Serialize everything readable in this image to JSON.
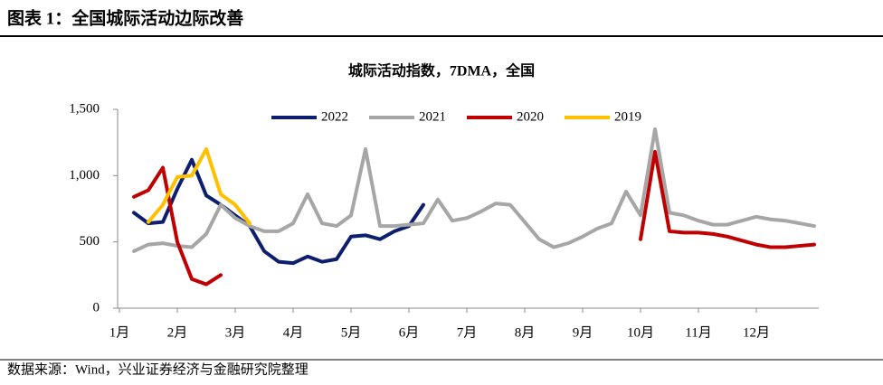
{
  "header": {
    "title": "图表 1：全国城际活动边际改善"
  },
  "chart_data": {
    "type": "line",
    "title": "城际活动指数，7DMA，全国",
    "categories": [
      "1月",
      null,
      null,
      null,
      "2月",
      null,
      null,
      null,
      "3月",
      null,
      null,
      null,
      "4月",
      null,
      null,
      null,
      "5月",
      null,
      null,
      null,
      "6月",
      null,
      null,
      null,
      "7月",
      null,
      null,
      null,
      "8月",
      null,
      null,
      null,
      "9月",
      null,
      null,
      null,
      "10月",
      null,
      null,
      null,
      "11月",
      null,
      null,
      null,
      "12月",
      null,
      null,
      null,
      null
    ],
    "series": [
      {
        "name": "2022",
        "color": "#0c1f6e",
        "values": [
          null,
          720,
          640,
          650,
          900,
          1120,
          850,
          780,
          700,
          620,
          430,
          350,
          340,
          390,
          350,
          370,
          540,
          550,
          520,
          580,
          620,
          780,
          null,
          null,
          null,
          null,
          null,
          null,
          null,
          null,
          null,
          null,
          null,
          null,
          null,
          null,
          null,
          null,
          null,
          null,
          null,
          null,
          null,
          null,
          null,
          null,
          null,
          null,
          null
        ]
      },
      {
        "name": "2021",
        "color": "#a6a6a6",
        "values": [
          null,
          430,
          480,
          490,
          470,
          460,
          560,
          780,
          680,
          620,
          580,
          580,
          640,
          860,
          640,
          620,
          700,
          1200,
          620,
          620,
          630,
          640,
          820,
          660,
          680,
          730,
          790,
          780,
          650,
          520,
          460,
          490,
          540,
          600,
          640,
          880,
          700,
          1350,
          720,
          700,
          660,
          630,
          630,
          660,
          690,
          670,
          660,
          640,
          620
        ]
      },
      {
        "name": "2020",
        "color": "#c00000",
        "values": [
          null,
          840,
          890,
          1060,
          500,
          220,
          180,
          250,
          null,
          null,
          null,
          null,
          null,
          null,
          null,
          null,
          null,
          null,
          null,
          null,
          null,
          null,
          null,
          null,
          null,
          null,
          null,
          null,
          null,
          null,
          null,
          null,
          null,
          null,
          null,
          null,
          520,
          1180,
          580,
          570,
          570,
          560,
          540,
          510,
          480,
          460,
          460,
          470,
          480
        ]
      },
      {
        "name": "2019",
        "color": "#ffc000",
        "values": [
          null,
          null,
          650,
          780,
          990,
          1000,
          1200,
          860,
          780,
          640,
          null,
          null,
          null,
          null,
          null,
          null,
          null,
          null,
          null,
          null,
          null,
          null,
          null,
          null,
          null,
          null,
          null,
          null,
          null,
          null,
          null,
          null,
          null,
          null,
          null,
          null,
          null,
          null,
          null,
          null,
          null,
          null,
          null,
          null,
          null,
          null,
          null,
          null,
          null
        ]
      }
    ],
    "ylim": [
      0,
      1500
    ],
    "yticks": [
      0,
      500,
      {
        "value": 1000,
        "label": "1,000"
      },
      {
        "value": 1500,
        "label": "1,500"
      }
    ],
    "legend": "top"
  },
  "footer": {
    "source": "数据来源：Wind，兴业证券经济与金融研究院整理"
  }
}
